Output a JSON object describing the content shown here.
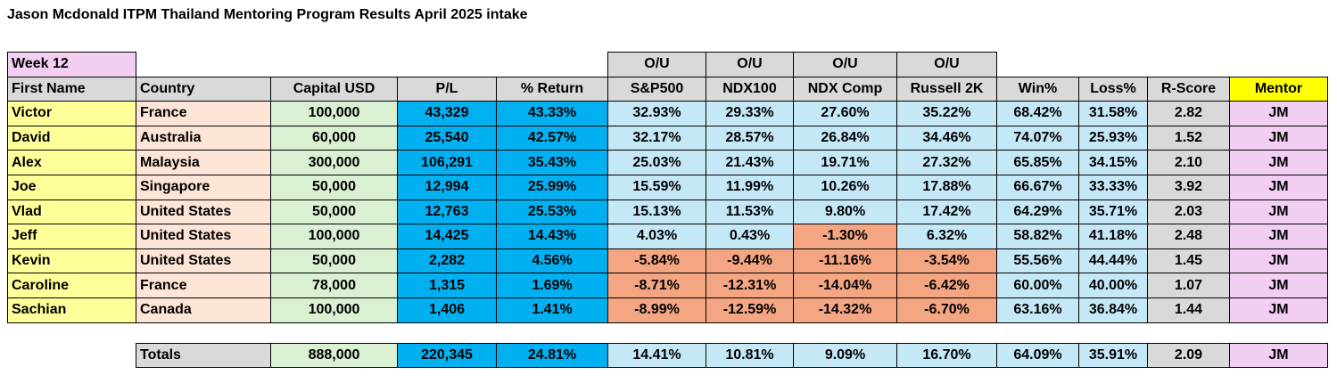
{
  "title": "Jason Mcdonald ITPM Thailand Mentoring Program Results April 2025 intake",
  "week_label": "Week 12",
  "ou_label": "O/U",
  "headers": [
    "First Name",
    "Country",
    "Capital USD",
    "P/L",
    "% Return",
    "S&P500",
    "NDX100",
    "NDX Comp",
    "Russell 2K",
    "Win%",
    "Loss%",
    "R-Score",
    "Mentor"
  ],
  "rows": [
    {
      "name": "Victor",
      "country": "France",
      "capital": "100,000",
      "pl": "43,329",
      "ret": "43.33%",
      "sp": "32.93%",
      "ndx": "29.33%",
      "comp": "27.60%",
      "rut": "35.22%",
      "win": "68.42%",
      "loss": "31.58%",
      "r": "2.82",
      "mentor": "JM",
      "neg": [
        false,
        false,
        false,
        false
      ]
    },
    {
      "name": "David",
      "country": "Australia",
      "capital": "60,000",
      "pl": "25,540",
      "ret": "42.57%",
      "sp": "32.17%",
      "ndx": "28.57%",
      "comp": "26.84%",
      "rut": "34.46%",
      "win": "74.07%",
      "loss": "25.93%",
      "r": "1.52",
      "mentor": "JM",
      "neg": [
        false,
        false,
        false,
        false
      ]
    },
    {
      "name": "Alex",
      "country": "Malaysia",
      "capital": "300,000",
      "pl": "106,291",
      "ret": "35.43%",
      "sp": "25.03%",
      "ndx": "21.43%",
      "comp": "19.71%",
      "rut": "27.32%",
      "win": "65.85%",
      "loss": "34.15%",
      "r": "2.10",
      "mentor": "JM",
      "neg": [
        false,
        false,
        false,
        false
      ]
    },
    {
      "name": "Joe",
      "country": "Singapore",
      "capital": "50,000",
      "pl": "12,994",
      "ret": "25.99%",
      "sp": "15.59%",
      "ndx": "11.99%",
      "comp": "10.26%",
      "rut": "17.88%",
      "win": "66.67%",
      "loss": "33.33%",
      "r": "3.92",
      "mentor": "JM",
      "neg": [
        false,
        false,
        false,
        false
      ]
    },
    {
      "name": "Vlad",
      "country": "United States",
      "capital": "50,000",
      "pl": "12,763",
      "ret": "25.53%",
      "sp": "15.13%",
      "ndx": "11.53%",
      "comp": "9.80%",
      "rut": "17.42%",
      "win": "64.29%",
      "loss": "35.71%",
      "r": "2.03",
      "mentor": "JM",
      "neg": [
        false,
        false,
        false,
        false
      ]
    },
    {
      "name": "Jeff",
      "country": "United States",
      "capital": "100,000",
      "pl": "14,425",
      "ret": "14.43%",
      "sp": "4.03%",
      "ndx": "0.43%",
      "comp": "-1.30%",
      "rut": "6.32%",
      "win": "58.82%",
      "loss": "41.18%",
      "r": "2.48",
      "mentor": "JM",
      "neg": [
        false,
        false,
        true,
        false
      ]
    },
    {
      "name": "Kevin",
      "country": "United States",
      "capital": "50,000",
      "pl": "2,282",
      "ret": "4.56%",
      "sp": "-5.84%",
      "ndx": "-9.44%",
      "comp": "-11.16%",
      "rut": "-3.54%",
      "win": "55.56%",
      "loss": "44.44%",
      "r": "1.45",
      "mentor": "JM",
      "neg": [
        true,
        true,
        true,
        true
      ]
    },
    {
      "name": "Caroline",
      "country": "France",
      "capital": "78,000",
      "pl": "1,315",
      "ret": "1.69%",
      "sp": "-8.71%",
      "ndx": "-12.31%",
      "comp": "-14.04%",
      "rut": "-6.42%",
      "win": "60.00%",
      "loss": "40.00%",
      "r": "1.07",
      "mentor": "JM",
      "neg": [
        true,
        true,
        true,
        true
      ]
    },
    {
      "name": "Sachian",
      "country": "Canada",
      "capital": "100,000",
      "pl": "1,406",
      "ret": "1.41%",
      "sp": "-8.99%",
      "ndx": "-12.59%",
      "comp": "-14.32%",
      "rut": "-6.70%",
      "win": "63.16%",
      "loss": "36.84%",
      "r": "1.44",
      "mentor": "JM",
      "neg": [
        true,
        true,
        true,
        true
      ]
    }
  ],
  "totals": {
    "label": "Totals",
    "capital": "888,000",
    "pl": "220,345",
    "ret": "24.81%",
    "sp": "14.41%",
    "ndx": "10.81%",
    "comp": "9.09%",
    "rut": "16.70%",
    "win": "64.09%",
    "loss": "35.91%",
    "r": "2.09",
    "mentor": "JM"
  }
}
